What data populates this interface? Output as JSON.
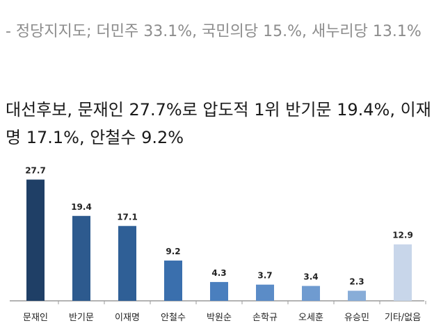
{
  "article": {
    "party_support_line": "- 정당지지도; 더민주 33.1%, 국민의당 15.%, 새누리당 13.1%",
    "headline": "대선후보, 문재인 27.7%로 압도적 1위 반기문 19.4%, 이재명 17.1%, 안철수 9.2%"
  },
  "chart_data": {
    "type": "bar",
    "title": "",
    "xlabel": "",
    "ylabel": "",
    "categories": [
      "문재인",
      "반기문",
      "이재명",
      "안철수",
      "박원순",
      "손학규",
      "오세훈",
      "유승민",
      "기타/없음"
    ],
    "values": [
      27.7,
      19.4,
      17.1,
      9.2,
      4.3,
      3.7,
      3.4,
      2.3,
      12.9
    ],
    "ylim": [
      0,
      30
    ],
    "grid": false,
    "legend": "none",
    "colors": [
      "#1f3f66",
      "#2d5a8e",
      "#2f5f96",
      "#3a6fad",
      "#4a7fbe",
      "#5b8cc7",
      "#6f9bd0",
      "#88add8",
      "#c8d6ea"
    ]
  }
}
